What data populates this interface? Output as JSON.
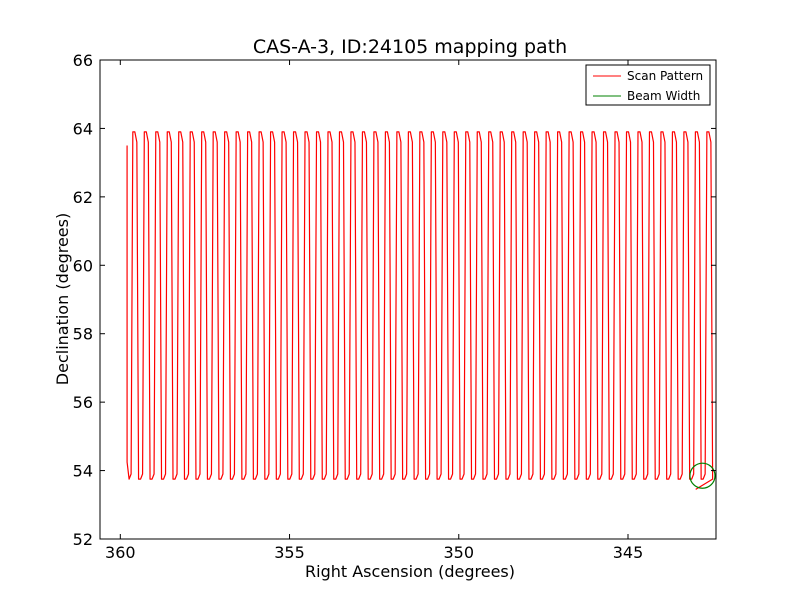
{
  "chart_data": {
    "type": "line",
    "title": "CAS-A-3, ID:24105 mapping path",
    "xlabel": "Right Ascension (degrees)",
    "ylabel": "Declination (degrees)",
    "xlim": [
      360.6,
      342.4
    ],
    "ylim": [
      52,
      66
    ],
    "x_ticks": [
      360,
      355,
      350,
      345
    ],
    "y_ticks": [
      52,
      54,
      56,
      58,
      60,
      62,
      64,
      66
    ],
    "x_tick_labels": [
      "360",
      "355",
      "350",
      "345"
    ],
    "y_tick_labels": [
      "52",
      "54",
      "56",
      "58",
      "60",
      "62",
      "64",
      "66"
    ],
    "grid": false,
    "legend_position": "top-right",
    "series": [
      {
        "name": "Scan Pattern",
        "color": "#ff0000",
        "pattern": "raster",
        "ra_start": 359.8,
        "ra_end": 342.5,
        "dec_low": 53.75,
        "dec_high": 63.9,
        "num_sweeps": 102,
        "start_point": [
          359.8,
          63.5
        ],
        "end_point": [
          343.0,
          53.45
        ]
      },
      {
        "name": "Beam Width",
        "color": "#008000",
        "shape": "circle",
        "center": [
          342.8,
          53.85
        ],
        "radius_deg": 0.37
      }
    ]
  }
}
